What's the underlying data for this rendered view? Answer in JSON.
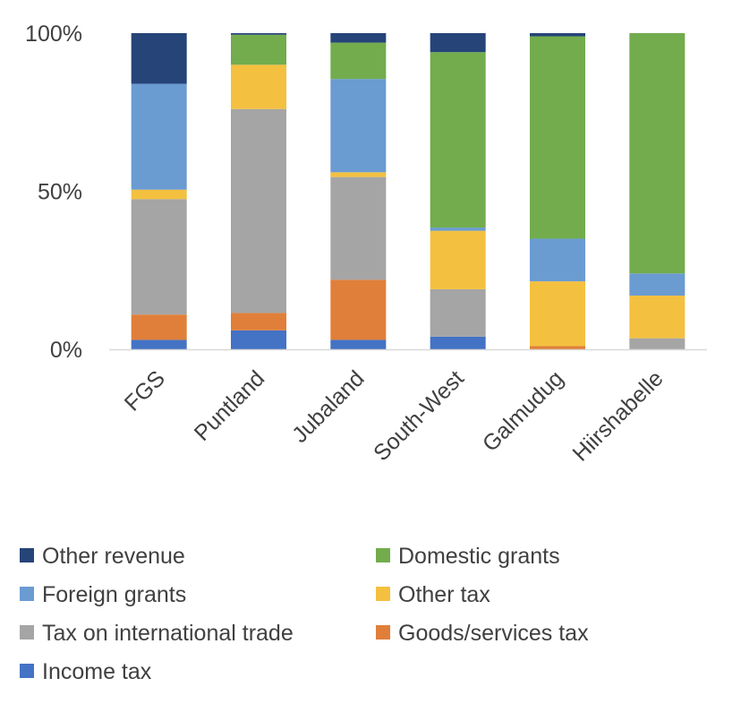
{
  "chart_data": {
    "type": "bar",
    "stacked": true,
    "percent_stacked": true,
    "categories": [
      "FGS",
      "Puntland",
      "Jubaland",
      "South-West",
      "Galmudug",
      "Hiirshabelle"
    ],
    "y_ticks": [
      "0%",
      "50%",
      "100%"
    ],
    "ylim": [
      0,
      100
    ],
    "grid": false,
    "legend_position": "bottom",
    "series": [
      {
        "name": "Income tax",
        "color": "#4472C4",
        "values": [
          3,
          6,
          3,
          4,
          0,
          0
        ]
      },
      {
        "name": "Goods/services tax",
        "color": "#E07F3A",
        "values": [
          8,
          5.5,
          19,
          0,
          1,
          0
        ]
      },
      {
        "name": "Tax on international trade",
        "color": "#A5A5A5",
        "values": [
          36.5,
          64.5,
          32.5,
          15,
          0,
          3.5
        ]
      },
      {
        "name": "Other tax",
        "color": "#F4C040",
        "values": [
          3,
          14,
          1.5,
          18.5,
          20.5,
          13.5
        ]
      },
      {
        "name": "Foreign grants",
        "color": "#6A9BD1",
        "values": [
          33.5,
          0,
          29.5,
          1,
          13.5,
          7
        ]
      },
      {
        "name": "Domestic grants",
        "color": "#72AC4D",
        "values": [
          0,
          9.5,
          11.5,
          55.5,
          64,
          76
        ]
      },
      {
        "name": "Other revenue",
        "color": "#264478",
        "values": [
          16,
          0.5,
          3,
          6,
          1,
          0
        ]
      }
    ],
    "legend_order": [
      "Other revenue",
      "Domestic grants",
      "Foreign grants",
      "Other tax",
      "Tax on international trade",
      "Goods/services tax",
      "Income tax"
    ]
  }
}
